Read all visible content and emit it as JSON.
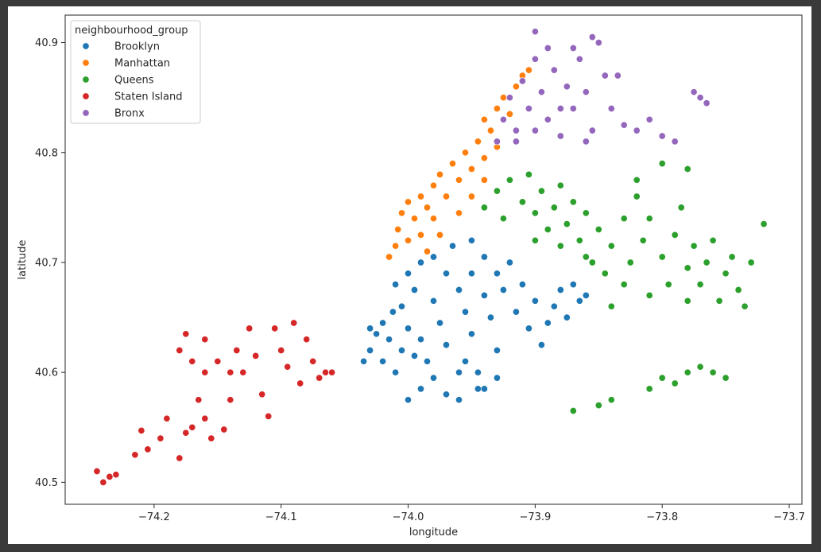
{
  "chart_data": {
    "type": "scatter",
    "title": "",
    "xlabel": "longitude",
    "ylabel": "latitude",
    "xlim": [
      -74.27,
      -73.69
    ],
    "ylim": [
      40.48,
      40.925
    ],
    "xticks": [
      -74.2,
      -74.1,
      -74.0,
      -73.9,
      -73.8,
      -73.7
    ],
    "xtick_labels": [
      "−74.2",
      "−74.1",
      "−74.0",
      "−73.9",
      "−73.8",
      "−73.7"
    ],
    "yticks": [
      40.5,
      40.6,
      40.7,
      40.8,
      40.9
    ],
    "ytick_labels": [
      "40.5",
      "40.6",
      "40.7",
      "40.8",
      "40.9"
    ],
    "grid": false,
    "legend": {
      "title": "neighbourhood_group",
      "placement": "top-left",
      "entries": [
        {
          "label": "Brooklyn",
          "color": "#1f77b4"
        },
        {
          "label": "Manhattan",
          "color": "#ff7f0e"
        },
        {
          "label": "Queens",
          "color": "#2ca02c"
        },
        {
          "label": "Staten Island",
          "color": "#d62728"
        },
        {
          "label": "Bronx",
          "color": "#9467bd"
        }
      ]
    },
    "series": [
      {
        "name": "Brooklyn",
        "color": "#1f77b4",
        "points": [
          [
            -74.03,
            40.62
          ],
          [
            -74.025,
            40.635
          ],
          [
            -74.02,
            40.645
          ],
          [
            -74.015,
            40.63
          ],
          [
            -74.01,
            40.68
          ],
          [
            -74.012,
            40.655
          ],
          [
            -74.005,
            40.66
          ],
          [
            -74.0,
            40.69
          ],
          [
            -74.0,
            40.64
          ],
          [
            -73.995,
            40.675
          ],
          [
            -73.99,
            40.7
          ],
          [
            -73.99,
            40.63
          ],
          [
            -73.985,
            40.61
          ],
          [
            -73.98,
            40.705
          ],
          [
            -73.98,
            40.665
          ],
          [
            -73.975,
            40.645
          ],
          [
            -73.97,
            40.69
          ],
          [
            -73.97,
            40.625
          ],
          [
            -73.965,
            40.715
          ],
          [
            -73.96,
            40.675
          ],
          [
            -73.96,
            40.6
          ],
          [
            -73.955,
            40.655
          ],
          [
            -73.95,
            40.72
          ],
          [
            -73.95,
            40.69
          ],
          [
            -73.95,
            40.635
          ],
          [
            -73.945,
            40.585
          ],
          [
            -73.94,
            40.67
          ],
          [
            -73.94,
            40.705
          ],
          [
            -73.935,
            40.65
          ],
          [
            -73.93,
            40.69
          ],
          [
            -73.93,
            40.62
          ],
          [
            -73.925,
            40.675
          ],
          [
            -73.92,
            40.7
          ],
          [
            -73.915,
            40.655
          ],
          [
            -73.91,
            40.68
          ],
          [
            -73.905,
            40.64
          ],
          [
            -73.9,
            40.665
          ],
          [
            -73.895,
            40.625
          ],
          [
            -73.89,
            40.645
          ],
          [
            -73.885,
            40.66
          ],
          [
            -73.88,
            40.675
          ],
          [
            -73.875,
            40.65
          ],
          [
            -73.87,
            40.68
          ],
          [
            -73.865,
            40.665
          ],
          [
            -73.86,
            40.67
          ],
          [
            -74.0,
            40.575
          ],
          [
            -73.99,
            40.585
          ],
          [
            -73.98,
            40.595
          ],
          [
            -73.97,
            40.58
          ],
          [
            -73.96,
            40.575
          ],
          [
            -73.955,
            40.61
          ],
          [
            -73.945,
            40.6
          ],
          [
            -73.94,
            40.585
          ],
          [
            -73.93,
            40.595
          ],
          [
            -74.035,
            40.61
          ],
          [
            -74.03,
            40.64
          ],
          [
            -74.02,
            40.61
          ],
          [
            -74.01,
            40.6
          ],
          [
            -74.005,
            40.62
          ],
          [
            -73.995,
            40.615
          ]
        ]
      },
      {
        "name": "Manhattan",
        "color": "#ff7f0e",
        "points": [
          [
            -74.015,
            40.705
          ],
          [
            -74.01,
            40.715
          ],
          [
            -74.008,
            40.73
          ],
          [
            -74.005,
            40.745
          ],
          [
            -74.0,
            40.72
          ],
          [
            -74.0,
            40.755
          ],
          [
            -73.995,
            40.74
          ],
          [
            -73.99,
            40.76
          ],
          [
            -73.99,
            40.725
          ],
          [
            -73.985,
            40.75
          ],
          [
            -73.98,
            40.77
          ],
          [
            -73.98,
            40.74
          ],
          [
            -73.975,
            40.78
          ],
          [
            -73.97,
            40.76
          ],
          [
            -73.965,
            40.79
          ],
          [
            -73.96,
            40.775
          ],
          [
            -73.955,
            40.8
          ],
          [
            -73.95,
            40.785
          ],
          [
            -73.945,
            40.81
          ],
          [
            -73.94,
            40.795
          ],
          [
            -73.94,
            40.83
          ],
          [
            -73.935,
            40.82
          ],
          [
            -73.93,
            40.84
          ],
          [
            -73.93,
            40.805
          ],
          [
            -73.925,
            40.85
          ],
          [
            -73.92,
            40.835
          ],
          [
            -73.915,
            40.86
          ],
          [
            -73.91,
            40.87
          ],
          [
            -73.905,
            40.875
          ],
          [
            -73.985,
            40.71
          ],
          [
            -73.975,
            40.725
          ],
          [
            -73.96,
            40.745
          ],
          [
            -73.95,
            40.76
          ],
          [
            -73.94,
            40.775
          ]
        ]
      },
      {
        "name": "Queens",
        "color": "#2ca02c",
        "points": [
          [
            -73.94,
            40.75
          ],
          [
            -73.93,
            40.765
          ],
          [
            -73.925,
            40.74
          ],
          [
            -73.92,
            40.775
          ],
          [
            -73.91,
            40.755
          ],
          [
            -73.905,
            40.78
          ],
          [
            -73.9,
            40.745
          ],
          [
            -73.895,
            40.765
          ],
          [
            -73.89,
            40.73
          ],
          [
            -73.885,
            40.75
          ],
          [
            -73.88,
            40.77
          ],
          [
            -73.875,
            40.735
          ],
          [
            -73.87,
            40.755
          ],
          [
            -73.865,
            40.72
          ],
          [
            -73.86,
            40.745
          ],
          [
            -73.855,
            40.7
          ],
          [
            -73.85,
            40.73
          ],
          [
            -73.845,
            40.69
          ],
          [
            -73.84,
            40.715
          ],
          [
            -73.83,
            40.74
          ],
          [
            -73.825,
            40.7
          ],
          [
            -73.82,
            40.76
          ],
          [
            -73.815,
            40.72
          ],
          [
            -73.81,
            40.74
          ],
          [
            -73.8,
            40.705
          ],
          [
            -73.795,
            40.68
          ],
          [
            -73.79,
            40.725
          ],
          [
            -73.785,
            40.75
          ],
          [
            -73.78,
            40.695
          ],
          [
            -73.775,
            40.715
          ],
          [
            -73.77,
            40.68
          ],
          [
            -73.765,
            40.7
          ],
          [
            -73.76,
            40.72
          ],
          [
            -73.755,
            40.665
          ],
          [
            -73.75,
            40.69
          ],
          [
            -73.745,
            40.705
          ],
          [
            -73.74,
            40.675
          ],
          [
            -73.735,
            40.66
          ],
          [
            -73.73,
            40.7
          ],
          [
            -73.72,
            40.735
          ],
          [
            -73.8,
            40.79
          ],
          [
            -73.78,
            40.785
          ],
          [
            -73.82,
            40.775
          ],
          [
            -73.79,
            40.59
          ],
          [
            -73.8,
            40.595
          ],
          [
            -73.81,
            40.585
          ],
          [
            -73.78,
            40.6
          ],
          [
            -73.77,
            40.605
          ],
          [
            -73.76,
            40.6
          ],
          [
            -73.75,
            40.595
          ],
          [
            -73.84,
            40.575
          ],
          [
            -73.85,
            40.57
          ],
          [
            -73.87,
            40.565
          ],
          [
            -73.9,
            40.72
          ],
          [
            -73.88,
            40.715
          ],
          [
            -73.86,
            40.705
          ],
          [
            -73.84,
            40.66
          ],
          [
            -73.83,
            40.68
          ],
          [
            -73.81,
            40.67
          ],
          [
            -73.78,
            40.665
          ]
        ]
      },
      {
        "name": "Staten Island",
        "color": "#d62728",
        "points": [
          [
            -74.245,
            40.51
          ],
          [
            -74.24,
            40.5
          ],
          [
            -74.235,
            40.505
          ],
          [
            -74.23,
            40.507
          ],
          [
            -74.215,
            40.525
          ],
          [
            -74.21,
            40.547
          ],
          [
            -74.205,
            40.53
          ],
          [
            -74.195,
            40.54
          ],
          [
            -74.19,
            40.558
          ],
          [
            -74.18,
            40.522
          ],
          [
            -74.175,
            40.545
          ],
          [
            -74.17,
            40.55
          ],
          [
            -74.165,
            40.575
          ],
          [
            -74.16,
            40.558
          ],
          [
            -74.155,
            40.54
          ],
          [
            -74.15,
            40.61
          ],
          [
            -74.145,
            40.548
          ],
          [
            -74.14,
            40.575
          ],
          [
            -74.135,
            40.62
          ],
          [
            -74.13,
            40.6
          ],
          [
            -74.125,
            40.64
          ],
          [
            -74.12,
            40.615
          ],
          [
            -74.115,
            40.58
          ],
          [
            -74.11,
            40.56
          ],
          [
            -74.105,
            40.64
          ],
          [
            -74.1,
            40.62
          ],
          [
            -74.095,
            40.605
          ],
          [
            -74.09,
            40.645
          ],
          [
            -74.085,
            40.59
          ],
          [
            -74.08,
            40.63
          ],
          [
            -74.075,
            40.61
          ],
          [
            -74.07,
            40.595
          ],
          [
            -74.065,
            40.6
          ],
          [
            -74.06,
            40.6
          ],
          [
            -74.175,
            40.635
          ],
          [
            -74.18,
            40.62
          ],
          [
            -74.17,
            40.61
          ],
          [
            -74.16,
            40.63
          ],
          [
            -74.16,
            40.6
          ],
          [
            -74.14,
            40.6
          ]
        ]
      },
      {
        "name": "Bronx",
        "color": "#9467bd",
        "points": [
          [
            -73.93,
            40.81
          ],
          [
            -73.925,
            40.83
          ],
          [
            -73.92,
            40.85
          ],
          [
            -73.915,
            40.82
          ],
          [
            -73.91,
            40.865
          ],
          [
            -73.905,
            40.84
          ],
          [
            -73.9,
            40.885
          ],
          [
            -73.895,
            40.855
          ],
          [
            -73.89,
            40.83
          ],
          [
            -73.885,
            40.875
          ],
          [
            -73.88,
            40.815
          ],
          [
            -73.875,
            40.86
          ],
          [
            -73.87,
            40.84
          ],
          [
            -73.865,
            40.885
          ],
          [
            -73.86,
            40.855
          ],
          [
            -73.855,
            40.82
          ],
          [
            -73.85,
            40.9
          ],
          [
            -73.845,
            40.87
          ],
          [
            -73.84,
            40.84
          ],
          [
            -73.835,
            40.87
          ],
          [
            -73.83,
            40.825
          ],
          [
            -73.82,
            40.82
          ],
          [
            -73.81,
            40.83
          ],
          [
            -73.8,
            40.815
          ],
          [
            -73.79,
            40.81
          ],
          [
            -73.9,
            40.91
          ],
          [
            -73.89,
            40.895
          ],
          [
            -73.87,
            40.895
          ],
          [
            -73.855,
            40.905
          ],
          [
            -73.86,
            40.81
          ],
          [
            -73.775,
            40.855
          ],
          [
            -73.77,
            40.85
          ],
          [
            -73.765,
            40.845
          ],
          [
            -73.915,
            40.81
          ],
          [
            -73.9,
            40.82
          ],
          [
            -73.88,
            40.84
          ]
        ]
      }
    ]
  }
}
